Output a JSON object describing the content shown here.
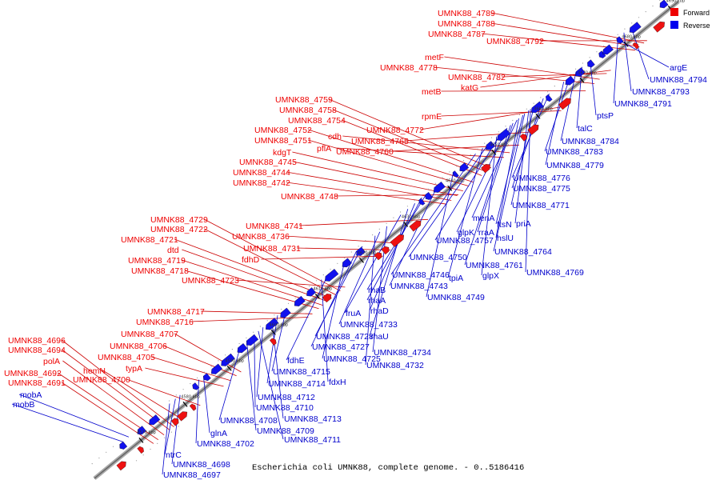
{
  "caption": "Escherichia coli UMNK88, complete genome. - 0..5186416",
  "legend": {
    "forward": {
      "label": "Forward",
      "color": "#ee0000"
    },
    "reverse": {
      "label": "Reverse",
      "color": "#0000ee"
    }
  },
  "colors": {
    "forward": "#ee1111",
    "reverse": "#1111ee",
    "axis": "#888888",
    "forward_leader": "#cc0000",
    "reverse_leader": "#0000cc"
  },
  "ticks": [
    "4570 kbp",
    "4580 kbp",
    "4590 kbp",
    "4600 kbp",
    "4610 kbp",
    "4620 kbp",
    "4630 kbp",
    "4640 kbp",
    "4650 kbp",
    "4660 kbp",
    "4670 kbp",
    "4680 kbp",
    "4690 kbp"
  ],
  "forward_labels": [
    {
      "name": "UMNK88_4789",
      "gene_t": 0.93
    },
    {
      "name": "UMNK88_4788",
      "gene_t": 0.922
    },
    {
      "name": "UMNK88_4787",
      "gene_t": 0.915
    },
    {
      "name": "UMNK88_4792",
      "gene_t": 0.935
    },
    {
      "name": "metF",
      "gene_t": 0.854
    },
    {
      "name": "UMNK88_4778",
      "gene_t": 0.845
    },
    {
      "name": "UMNK88_4782",
      "gene_t": 0.866
    },
    {
      "name": "metB",
      "gene_t": 0.83
    },
    {
      "name": "katG",
      "gene_t": 0.873
    },
    {
      "name": "UMNK88_4759",
      "gene_t": 0.668
    },
    {
      "name": "UMNK88_4758",
      "gene_t": 0.66
    },
    {
      "name": "UMNK88_4754",
      "gene_t": 0.652
    },
    {
      "name": "rpmE",
      "gene_t": 0.788
    },
    {
      "name": "UMNK88_4752",
      "gene_t": 0.638
    },
    {
      "name": "cdh",
      "gene_t": 0.7
    },
    {
      "name": "UMNK88_4772",
      "gene_t": 0.798
    },
    {
      "name": "UMNK88_4751",
      "gene_t": 0.63
    },
    {
      "name": "pflA",
      "gene_t": 0.69
    },
    {
      "name": "UMNK88_4765",
      "gene_t": 0.744
    },
    {
      "name": "kdgT",
      "gene_t": 0.62
    },
    {
      "name": "UMNK88_4760",
      "gene_t": 0.716
    },
    {
      "name": "UMNK88_4745",
      "gene_t": 0.61
    },
    {
      "name": "UMNK88_4744",
      "gene_t": 0.6
    },
    {
      "name": "UMNK88_4742",
      "gene_t": 0.592
    },
    {
      "name": "UMNK88_4748",
      "gene_t": 0.612
    },
    {
      "name": "UMNK88_4729",
      "gene_t": 0.41
    },
    {
      "name": "UMNK88_4741",
      "gene_t": 0.56
    },
    {
      "name": "UMNK88_4722",
      "gene_t": 0.402
    },
    {
      "name": "UMNK88_4736",
      "gene_t": 0.51
    },
    {
      "name": "UMNK88_4721",
      "gene_t": 0.395
    },
    {
      "name": "UMNK88_4731",
      "gene_t": 0.496
    },
    {
      "name": "dtd",
      "gene_t": 0.388
    },
    {
      "name": "fdhD",
      "gene_t": 0.483
    },
    {
      "name": "UMNK88_4719",
      "gene_t": 0.38
    },
    {
      "name": "UMNK88_4718",
      "gene_t": 0.373
    },
    {
      "name": "UMNK88_4723",
      "gene_t": 0.418
    },
    {
      "name": "UMNK88_4717",
      "gene_t": 0.362
    },
    {
      "name": "UMNK88_4716",
      "gene_t": 0.355
    },
    {
      "name": "UMNK88_4696",
      "gene_t": 0.125
    },
    {
      "name": "UMNK88_4707",
      "gene_t": 0.24
    },
    {
      "name": "UMNK88_4694",
      "gene_t": 0.118
    },
    {
      "name": "UMNK88_4706",
      "gene_t": 0.232
    },
    {
      "name": "polA",
      "gene_t": 0.108
    },
    {
      "name": "UMNK88_4705",
      "gene_t": 0.222
    },
    {
      "name": "hemN",
      "gene_t": 0.14
    },
    {
      "name": "typA",
      "gene_t": 0.21
    },
    {
      "name": "UMNK88_4692",
      "gene_t": 0.098
    },
    {
      "name": "UMNK88_4700",
      "gene_t": 0.17
    },
    {
      "name": "UMNK88_4691",
      "gene_t": 0.09
    }
  ],
  "reverse_labels": [
    {
      "name": "argE",
      "gene_t": 0.905
    },
    {
      "name": "UMNK88_4794",
      "gene_t": 0.93
    },
    {
      "name": "UMNK88_4793",
      "gene_t": 0.918
    },
    {
      "name": "UMNK88_4791",
      "gene_t": 0.908
    },
    {
      "name": "ptsP",
      "gene_t": 0.86
    },
    {
      "name": "talC",
      "gene_t": 0.846
    },
    {
      "name": "UMNK88_4784",
      "gene_t": 0.836
    },
    {
      "name": "UMNK88_4783",
      "gene_t": 0.826
    },
    {
      "name": "UMNK88_4779",
      "gene_t": 0.815
    },
    {
      "name": "UMNK88_4776",
      "gene_t": 0.79
    },
    {
      "name": "UMNK88_4775",
      "gene_t": 0.78
    },
    {
      "name": "UMNK88_4771",
      "gene_t": 0.764
    },
    {
      "name": "priA",
      "gene_t": 0.755
    },
    {
      "name": "menA",
      "gene_t": 0.735
    },
    {
      "name": "ftsN",
      "gene_t": 0.745
    },
    {
      "name": "rraA",
      "gene_t": 0.728
    },
    {
      "name": "glpK",
      "gene_t": 0.718
    },
    {
      "name": "hslU",
      "gene_t": 0.738
    },
    {
      "name": "UMNK88_4757",
      "gene_t": 0.708
    },
    {
      "name": "UMNK88_4764",
      "gene_t": 0.748
    },
    {
      "name": "UMNK88_4750",
      "gene_t": 0.688
    },
    {
      "name": "UMNK88_4761",
      "gene_t": 0.724
    },
    {
      "name": "UMNK88_4769",
      "gene_t": 0.758
    },
    {
      "name": "UMNK88_4746",
      "gene_t": 0.664
    },
    {
      "name": "tpiA",
      "gene_t": 0.676
    },
    {
      "name": "glpX",
      "gene_t": 0.7
    },
    {
      "name": "rhaB",
      "gene_t": 0.58
    },
    {
      "name": "UMNK88_4743",
      "gene_t": 0.6
    },
    {
      "name": "rhaA",
      "gene_t": 0.572
    },
    {
      "name": "UMNK88_4749",
      "gene_t": 0.626
    },
    {
      "name": "fruA",
      "gene_t": 0.536
    },
    {
      "name": "rhaD",
      "gene_t": 0.56
    },
    {
      "name": "UMNK88_4733",
      "gene_t": 0.5
    },
    {
      "name": "UMNK88_4728",
      "gene_t": 0.47
    },
    {
      "name": "rhaU",
      "gene_t": 0.548
    },
    {
      "name": "UMNK88_4727",
      "gene_t": 0.46
    },
    {
      "name": "UMNK88_4734",
      "gene_t": 0.512
    },
    {
      "name": "fdhE",
      "gene_t": 0.412
    },
    {
      "name": "UMNK88_4725",
      "gene_t": 0.44
    },
    {
      "name": "UMNK88_4732",
      "gene_t": 0.492
    },
    {
      "name": "UMNK88_4715",
      "gene_t": 0.34
    },
    {
      "name": "fdxH",
      "gene_t": 0.4
    },
    {
      "name": "UMNK88_4714",
      "gene_t": 0.325
    },
    {
      "name": "UMNK88_4712",
      "gene_t": 0.3
    },
    {
      "name": "UMNK88_4710",
      "gene_t": 0.285
    },
    {
      "name": "UMNK88_4713",
      "gene_t": 0.315
    },
    {
      "name": "UMNK88_4708",
      "gene_t": 0.262
    },
    {
      "name": "UMNK88_4709",
      "gene_t": 0.272
    },
    {
      "name": "glnA",
      "gene_t": 0.198
    },
    {
      "name": "UMNK88_4711",
      "gene_t": 0.292
    },
    {
      "name": "UMNK88_4702",
      "gene_t": 0.19
    },
    {
      "name": "ntrC",
      "gene_t": 0.15
    },
    {
      "name": "UMNK88_4698",
      "gene_t": 0.158
    },
    {
      "name": "UMNK88_4697",
      "gene_t": 0.14
    },
    {
      "name": "mobA",
      "gene_t": 0.07
    },
    {
      "name": "mobB",
      "gene_t": 0.06
    }
  ]
}
